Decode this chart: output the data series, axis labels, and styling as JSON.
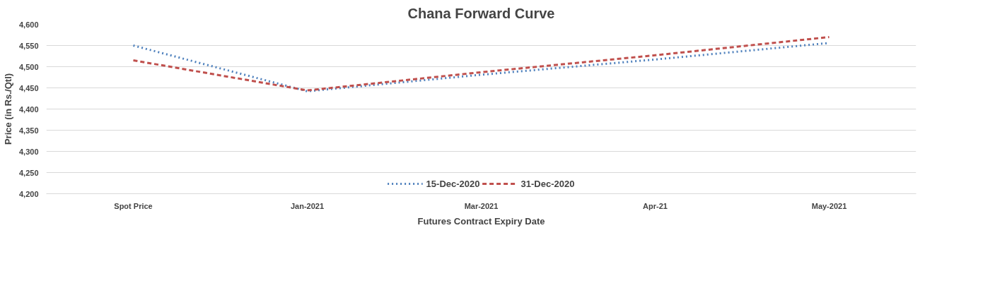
{
  "chart_data": {
    "type": "line",
    "title": "Chana Forward Curve",
    "xlabel": "Futures Contract Expiry Date",
    "ylabel": "Price (in Rs./Qtl)",
    "categories": [
      "Spot Price",
      "Jan-2021",
      "Mar-2021",
      "Apr-21",
      "May-2021"
    ],
    "series": [
      {
        "name": "15-Dec-2020",
        "color": "#4f81bd",
        "line_style": "dotted",
        "values": [
          4550,
          4442,
          4481,
          4517,
          4556
        ]
      },
      {
        "name": "31-Dec-2020",
        "color": "#c0504d",
        "line_style": "dashed",
        "values": [
          4515,
          4444,
          4487,
          4527,
          4570
        ]
      }
    ],
    "ylim": [
      4200,
      4600
    ],
    "yticks": [
      {
        "value": 4200,
        "label": "4,200"
      },
      {
        "value": 4250,
        "label": "4,250"
      },
      {
        "value": 4300,
        "label": "4,300"
      },
      {
        "value": 4350,
        "label": "4,350"
      },
      {
        "value": 4400,
        "label": "4,400"
      },
      {
        "value": 4450,
        "label": "4,450"
      },
      {
        "value": 4500,
        "label": "4,500"
      },
      {
        "value": 4550,
        "label": "4,550"
      },
      {
        "value": 4600,
        "label": "4,600"
      }
    ],
    "grid": "y",
    "legend": "bottom",
    "marker": "none"
  }
}
